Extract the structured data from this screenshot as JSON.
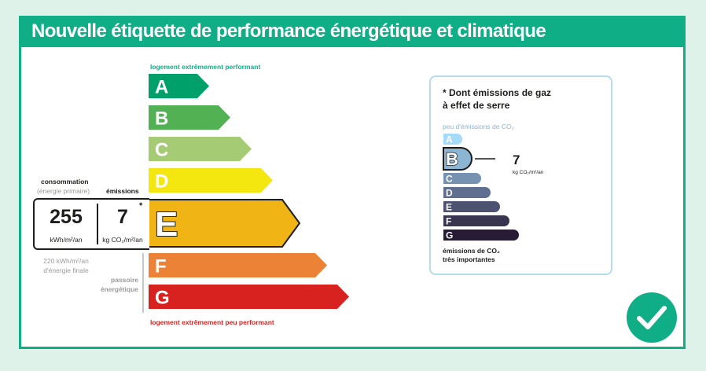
{
  "header": {
    "title": "Nouvelle étiquette de performance énergétique et climatique"
  },
  "dpe": {
    "top_label": "logement extrêmement performant",
    "bottom_label": "logement extrêmement peu performant",
    "classes": [
      {
        "letter": "A",
        "color": "#00a06b"
      },
      {
        "letter": "B",
        "color": "#52b153"
      },
      {
        "letter": "C",
        "color": "#a5cc74"
      },
      {
        "letter": "D",
        "color": "#f4e70f"
      },
      {
        "letter": "E",
        "color": "#f0b415"
      },
      {
        "letter": "F",
        "color": "#eb8235"
      },
      {
        "letter": "G",
        "color": "#d7221f"
      }
    ],
    "current_class": "E",
    "consumption_title": "consommation",
    "consumption_sub": "(énergie primaire)",
    "emissions_title": "émissions",
    "consumption_value": "255",
    "consumption_unit": "kWh/m²/an",
    "emissions_value": "7",
    "emissions_unit": "kg CO₂/m²/an",
    "asterisk": "*",
    "final_energy_line1": "220 kWh/m²/an",
    "final_energy_line2": "d'énergie finale",
    "passoire_line1": "passoire",
    "passoire_line2": "énergétique"
  },
  "ges": {
    "title_line1": "* Dont émissions de gaz",
    "title_line2": "à effet de serre",
    "top_label": "peu d'émissions de CO₂",
    "bottom_label_line1": "émissions de CO₂",
    "bottom_label_line2": "très importantes",
    "classes": [
      {
        "letter": "A",
        "color": "#a4dbf8"
      },
      {
        "letter": "B",
        "color": "#8cb4d3"
      },
      {
        "letter": "C",
        "color": "#7792b1"
      },
      {
        "letter": "D",
        "color": "#606f8f"
      },
      {
        "letter": "E",
        "color": "#4d5271"
      },
      {
        "letter": "F",
        "color": "#393551"
      },
      {
        "letter": "G",
        "color": "#281b35"
      }
    ],
    "current_class": "B",
    "value": "7",
    "unit": "kg CO₂/m²/an"
  },
  "icons": {
    "check": "check-circle-icon"
  }
}
